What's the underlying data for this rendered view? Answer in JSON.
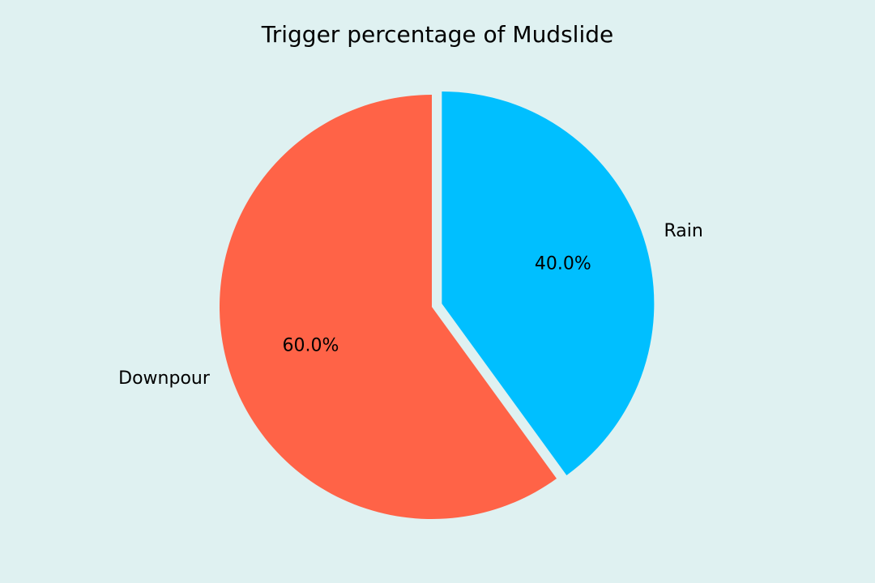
{
  "chart_data": {
    "type": "pie",
    "title": "Trigger percentage of Mudslide",
    "categories": [
      "Rain",
      "Downpour"
    ],
    "values": [
      40.0,
      60.0
    ],
    "value_labels": [
      "40.0%",
      "60.0%"
    ],
    "colors": [
      "#00bfff",
      "#ff6347"
    ],
    "exploded": [
      "Rain"
    ],
    "start_angle_deg": 90,
    "direction": "clockwise"
  },
  "colors": {
    "background": "#dff1f1",
    "text": "#000000"
  }
}
